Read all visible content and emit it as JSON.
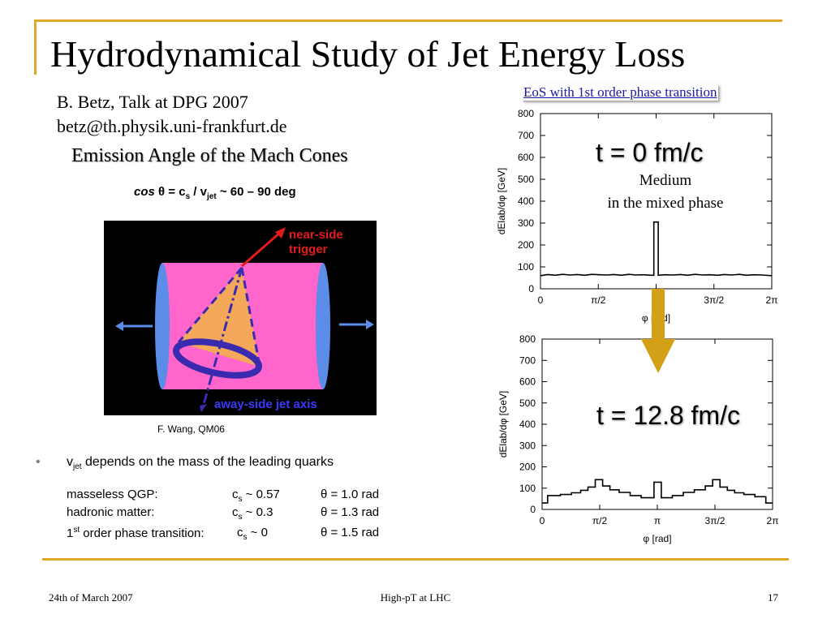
{
  "title": "Hydrodynamical Study of Jet Energy Loss",
  "author": {
    "line1": "B. Betz, Talk at DPG 2007",
    "line2": "betz@th.physik.uni-frankfurt.de"
  },
  "subtitle": "Emission Angle of the Mach Cones",
  "formula": {
    "cos": "cos",
    "theta": "θ = c",
    "s": "s",
    "slash": " / v",
    "jet": "jet",
    "rest": " ~ 60 – 90 deg"
  },
  "diagram": {
    "near_side": "near-side",
    "trigger": "trigger",
    "away_side": "away-side jet axis",
    "colors": {
      "background": "#000000",
      "cylinder": "#ff66cc",
      "cone": "#f4a95a",
      "ring": "#3a2ab0",
      "caps": "#5b8de8",
      "arrow": "#e21b1b"
    }
  },
  "credit": "F. Wang, QM06",
  "bullet": {
    "marker": "•",
    "v": "v",
    "jet": "jet",
    "text": " depends on the mass of the leading quarks"
  },
  "quarks": [
    {
      "label": "masseless QGP:",
      "sup": "",
      "c": "c",
      "sub": "s",
      "cval": " ~ 0.57",
      "theta": "θ = 1.0 rad"
    },
    {
      "label": "hadronic matter:",
      "sup": "",
      "c": "c",
      "sub": "s",
      "cval": " ~ 0.3",
      "theta": "θ = 1.3 rad"
    },
    {
      "label": "1",
      "sup": "st",
      "label_rest": " order phase transition:",
      "c": "c",
      "sub": "s",
      "cval": " ~ 0",
      "theta": "θ = 1.5 rad"
    }
  ],
  "eos_label": "EoS with 1st order phase transition",
  "annotations": {
    "t0": "t = 0 fm/c",
    "medium": "Medium",
    "mixed": "in the mixed phase",
    "t128": "t = 12.8 fm/c"
  },
  "chart_data": [
    {
      "type": "line",
      "ylabel": "dElab/dφ [GeV]",
      "xlabel": "φ [rad]",
      "ylim": [
        0,
        800
      ],
      "xlim": [
        0,
        6.2832
      ],
      "yticks": [
        0,
        100,
        200,
        300,
        400,
        500,
        600,
        700,
        800
      ],
      "xtick_labels": [
        "0",
        "π/2",
        "",
        "3π/2",
        "2π"
      ],
      "grid": false,
      "series": [
        {
          "x": [
            0,
            0.2,
            0.4,
            0.6,
            0.8,
            1.0,
            1.2,
            1.4,
            1.6,
            1.8,
            2.0,
            2.2,
            2.4,
            2.6,
            2.8,
            3.0,
            3.08,
            3.08,
            3.2,
            3.2,
            3.4,
            3.6,
            3.8,
            4.0,
            4.2,
            4.4,
            4.6,
            4.8,
            5.0,
            5.2,
            5.4,
            5.6,
            5.8,
            6.0,
            6.2832
          ],
          "y": [
            60,
            65,
            62,
            66,
            63,
            65,
            62,
            66,
            64,
            63,
            65,
            62,
            66,
            63,
            64,
            62,
            62,
            305,
            305,
            62,
            64,
            63,
            65,
            62,
            66,
            63,
            64,
            62,
            65,
            63,
            66,
            62,
            64,
            63,
            60
          ]
        }
      ]
    },
    {
      "type": "line",
      "ylabel": "dElab/dφ [GeV]",
      "xlabel": "φ [rad]",
      "ylim": [
        0,
        800
      ],
      "xlim": [
        0,
        6.2832
      ],
      "yticks": [
        0,
        100,
        200,
        300,
        400,
        500,
        600,
        700,
        800
      ],
      "xtick_labels": [
        "0",
        "π/2",
        "π",
        "3π/2",
        "2π"
      ],
      "grid": false,
      "series": [
        {
          "x": [
            0,
            0.15,
            0.15,
            0.5,
            0.5,
            0.8,
            0.8,
            1.05,
            1.05,
            1.25,
            1.25,
            1.45,
            1.45,
            1.65,
            1.65,
            1.85,
            1.85,
            2.1,
            2.1,
            2.4,
            2.4,
            2.7,
            2.7,
            3.05,
            3.05,
            3.25,
            3.25,
            3.55,
            3.55,
            3.85,
            3.85,
            4.15,
            4.15,
            4.45,
            4.45,
            4.65,
            4.65,
            4.85,
            4.85,
            5.05,
            5.05,
            5.25,
            5.25,
            5.5,
            5.5,
            5.8,
            5.8,
            6.1,
            6.1,
            6.2832
          ],
          "y": [
            30,
            30,
            65,
            65,
            70,
            70,
            78,
            78,
            90,
            90,
            105,
            105,
            140,
            140,
            110,
            110,
            92,
            92,
            80,
            80,
            65,
            65,
            55,
            55,
            128,
            128,
            55,
            55,
            65,
            65,
            80,
            80,
            92,
            92,
            110,
            110,
            140,
            140,
            105,
            105,
            90,
            90,
            78,
            78,
            70,
            70,
            60,
            60,
            30,
            30
          ]
        }
      ]
    }
  ],
  "footer": {
    "date": "24th of March 2007",
    "center": "High-pT at LHC",
    "page": "17"
  }
}
